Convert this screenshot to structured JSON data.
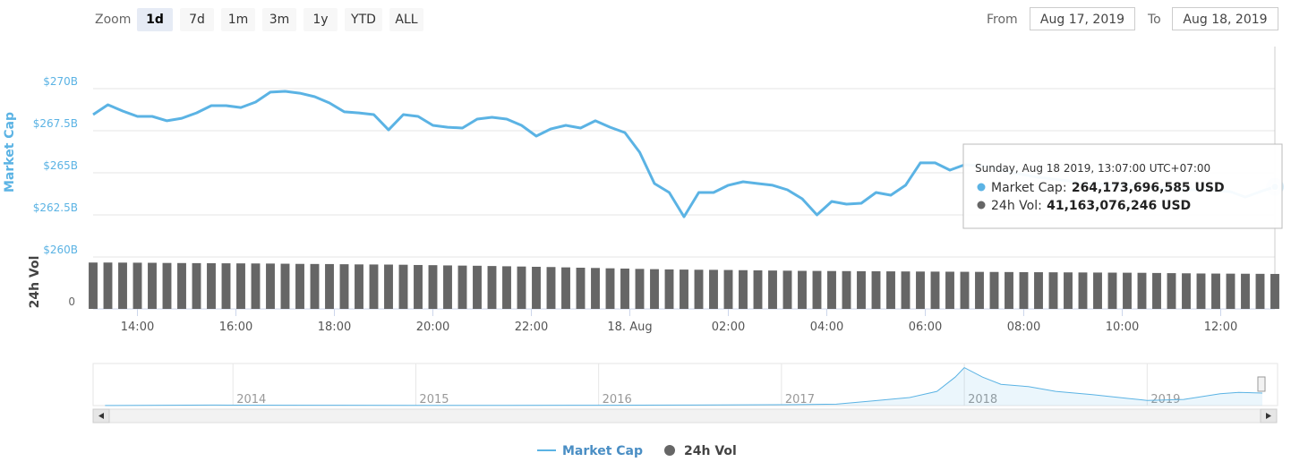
{
  "toolbar": {
    "zoom_label": "Zoom",
    "buttons": [
      "1d",
      "7d",
      "1m",
      "3m",
      "1y",
      "YTD",
      "ALL"
    ],
    "selected": 0,
    "from_label": "From",
    "from": "Aug 17, 2019",
    "to_label": "To",
    "to": "Aug 18, 2019"
  },
  "chart_data": {
    "type": "line",
    "x": [
      13.1,
      13.4,
      13.7,
      14.0,
      14.3,
      14.6,
      14.9,
      15.2,
      15.5,
      15.8,
      16.1,
      16.4,
      16.7,
      17.0,
      17.3,
      17.6,
      17.9,
      18.2,
      18.5,
      18.8,
      19.1,
      19.4,
      19.7,
      20.0,
      20.3,
      20.6,
      20.9,
      21.2,
      21.5,
      21.8,
      22.1,
      22.4,
      22.7,
      23.0,
      23.3,
      23.6,
      23.9,
      24.2,
      24.5,
      24.8,
      25.1,
      25.4,
      25.7,
      26.0,
      26.3,
      26.6,
      26.9,
      27.2,
      27.5,
      27.8,
      28.1,
      28.4,
      28.7,
      29.0,
      29.3,
      29.6,
      29.9,
      30.2,
      30.5,
      30.8,
      31.1,
      31.4,
      31.7,
      32.0,
      32.3,
      32.6,
      32.9,
      33.2,
      33.5,
      33.8,
      34.1,
      34.4,
      34.7,
      35.0,
      35.3,
      35.6,
      35.9,
      36.2,
      36.5,
      36.8,
      37.1
    ],
    "xlim": [
      13.1,
      37.1
    ],
    "xticks": [
      {
        "value": 14,
        "label": "14:00"
      },
      {
        "value": 16,
        "label": "16:00"
      },
      {
        "value": 18,
        "label": "18:00"
      },
      {
        "value": 20,
        "label": "20:00"
      },
      {
        "value": 22,
        "label": "22:00"
      },
      {
        "value": 24,
        "label": "18. Aug"
      },
      {
        "value": 26,
        "label": "02:00"
      },
      {
        "value": 28,
        "label": "04:00"
      },
      {
        "value": 30,
        "label": "06:00"
      },
      {
        "value": 32,
        "label": "08:00"
      },
      {
        "value": 34,
        "label": "10:00"
      },
      {
        "value": 36,
        "label": "12:00"
      }
    ],
    "ylabel": "Market Cap",
    "ylim": [
      260,
      272.5
    ],
    "yticks": [
      {
        "value": 260,
        "label": "$260B"
      },
      {
        "value": 262.5,
        "label": "$262.5B"
      },
      {
        "value": 265,
        "label": "$265B"
      },
      {
        "value": 267.5,
        "label": "$267.5B"
      },
      {
        "value": 270,
        "label": "$270B"
      }
    ],
    "y2label": "24h Vol",
    "y2lim": [
      0,
      58
    ],
    "y2ticks": [
      0
    ],
    "grid": true,
    "series": [
      {
        "name": "Market Cap",
        "color": "#5bb3e4",
        "values": [
          268.46,
          269.04,
          268.67,
          268.35,
          268.35,
          268.09,
          268.24,
          268.56,
          268.99,
          268.99,
          268.88,
          269.2,
          269.79,
          269.84,
          269.73,
          269.52,
          269.15,
          268.62,
          268.56,
          268.46,
          267.55,
          268.46,
          268.35,
          267.82,
          267.71,
          267.66,
          268.19,
          268.3,
          268.19,
          267.82,
          267.18,
          267.61,
          267.82,
          267.66,
          268.09,
          267.71,
          267.39,
          266.22,
          264.36,
          263.83,
          262.39,
          263.83,
          263.83,
          264.26,
          264.47,
          264.36,
          264.26,
          263.99,
          263.46,
          262.5,
          263.3,
          263.14,
          263.19,
          263.83,
          263.67,
          264.26,
          265.59,
          265.59,
          265.16,
          265.48,
          265.43,
          265.27,
          265.05,
          264.89,
          264.73,
          264.63,
          264.52,
          264.36,
          264.36,
          264.26,
          264.31,
          264.2,
          264.1,
          264.04,
          263.99,
          263.99,
          263.94,
          263.88,
          263.56,
          263.88,
          264.17
        ]
      },
      {
        "name": "24h Vol",
        "color": "#666666",
        "type": "column",
        "axis": "y2",
        "values": [
          54.6,
          54.6,
          54.5,
          54.4,
          54.3,
          54.1,
          54.0,
          53.9,
          53.8,
          53.7,
          53.6,
          53.5,
          53.4,
          53.2,
          53.0,
          52.9,
          52.8,
          52.6,
          52.4,
          52.3,
          52.2,
          52.0,
          51.7,
          51.5,
          51.2,
          51.0,
          50.8,
          50.5,
          50.2,
          49.9,
          49.6,
          49.3,
          48.9,
          48.5,
          48.2,
          47.8,
          47.5,
          47.1,
          46.8,
          46.5,
          46.3,
          46.1,
          46.0,
          45.8,
          45.6,
          45.4,
          45.2,
          45.0,
          44.8,
          44.7,
          44.6,
          44.5,
          44.4,
          44.3,
          44.2,
          44.1,
          44.0,
          43.9,
          43.8,
          43.7,
          43.6,
          43.5,
          43.4,
          43.3,
          43.2,
          43.1,
          43.0,
          42.9,
          42.8,
          42.7,
          42.6,
          42.5,
          42.3,
          42.1,
          41.9,
          41.7,
          41.6,
          41.5,
          41.4,
          41.3,
          41.16
        ]
      }
    ],
    "tooltip": {
      "header": "Sunday, Aug 18 2019, 13:07:00 UTC+07:00",
      "values": [
        "264,173,696,585 USD",
        "41,163,076,246 USD"
      ]
    },
    "navigator": {
      "x": [
        2013.3,
        2013.9,
        2014.0,
        2014.5,
        2015.0,
        2015.5,
        2016.0,
        2016.5,
        2017.0,
        2017.3,
        2017.5,
        2017.7,
        2017.85,
        2017.95,
        2018.0,
        2018.1,
        2018.2,
        2018.35,
        2018.5,
        2018.7,
        2018.9,
        2019.0,
        2019.2,
        2019.4,
        2019.5,
        2019.63
      ],
      "values": [
        1.5,
        12,
        10,
        7,
        4,
        3,
        7,
        11,
        18,
        30,
        100,
        170,
        300,
        600,
        800,
        600,
        450,
        400,
        300,
        230,
        150,
        110,
        130,
        250,
        280,
        264
      ],
      "xlim": [
        2013.24,
        2019.63
      ],
      "ylim": [
        0,
        850
      ],
      "xticks": [
        2014,
        2015,
        2016,
        2017,
        2018,
        2019
      ]
    }
  }
}
